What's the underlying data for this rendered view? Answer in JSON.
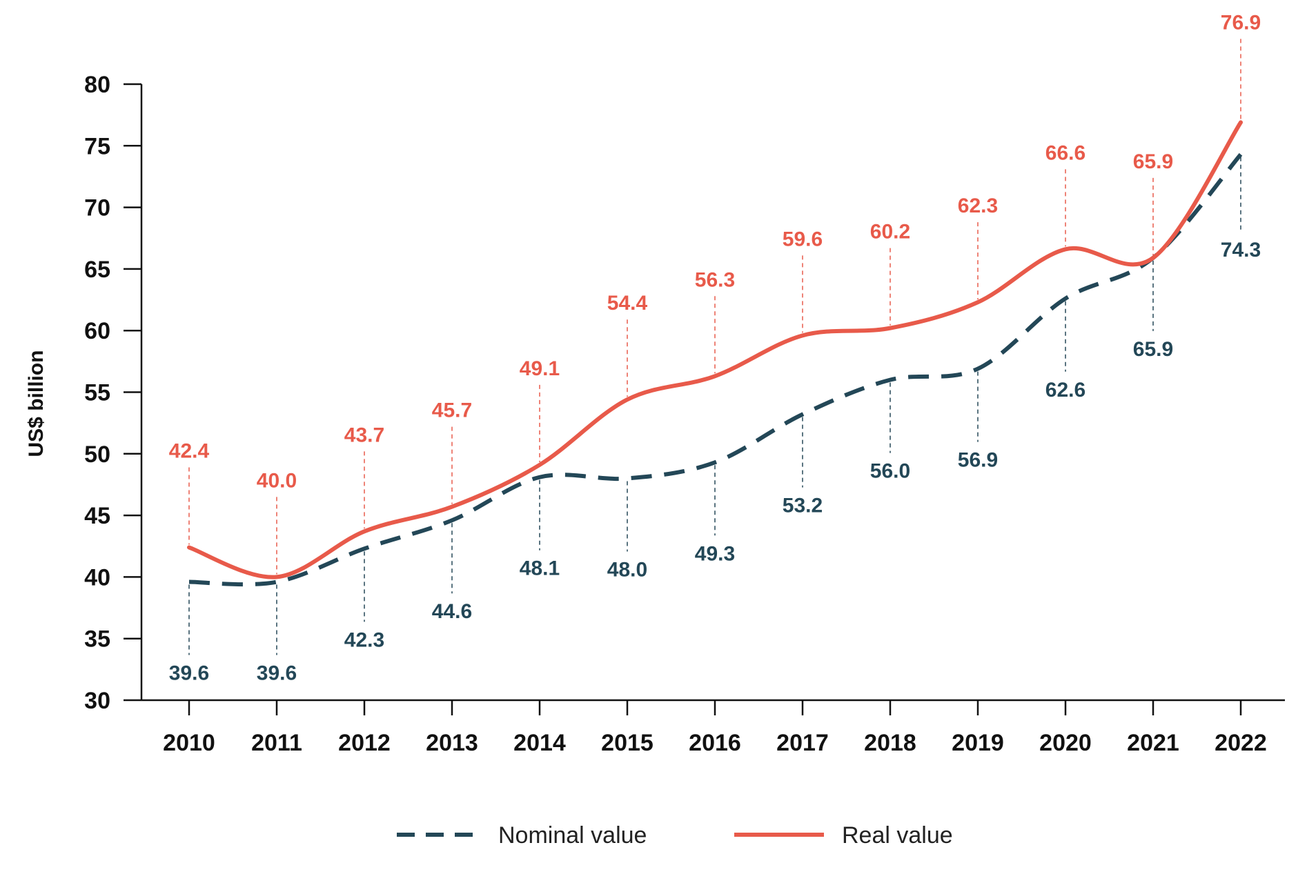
{
  "chart_data": {
    "type": "line",
    "title": "",
    "xlabel": "",
    "ylabel": "US$ billion",
    "ylim": [
      30,
      80
    ],
    "yticks": [
      30,
      35,
      40,
      45,
      50,
      55,
      60,
      65,
      70,
      75,
      80
    ],
    "categories": [
      "2010",
      "2011",
      "2012",
      "2013",
      "2014",
      "2015",
      "2016",
      "2017",
      "2018",
      "2019",
      "2020",
      "2021",
      "2022"
    ],
    "grid": false,
    "legend_position": "bottom-center",
    "series": [
      {
        "name": "Nominal value",
        "style": "dashed",
        "color": "#234757",
        "values": [
          39.6,
          39.6,
          42.3,
          44.6,
          48.1,
          48.0,
          49.3,
          53.2,
          56.0,
          56.9,
          62.6,
          65.9,
          74.3
        ],
        "label_values": [
          "39.6",
          "39.6",
          "42.3",
          "44.6",
          "48.1",
          "48.0",
          "49.3",
          "53.2",
          "56.0",
          "56.9",
          "62.6",
          "65.9",
          "74.3"
        ]
      },
      {
        "name": "Real value",
        "style": "solid",
        "color": "#e85a4a",
        "values": [
          42.4,
          40.0,
          43.7,
          45.7,
          49.1,
          54.4,
          56.3,
          59.6,
          60.2,
          62.3,
          66.6,
          65.9,
          76.9
        ],
        "label_values": [
          "42.4",
          "40.0",
          "43.7",
          "45.7",
          "49.1",
          "54.4",
          "56.3",
          "59.6",
          "60.2",
          "62.3",
          "66.6",
          "65.9",
          "76.9"
        ]
      }
    ]
  }
}
